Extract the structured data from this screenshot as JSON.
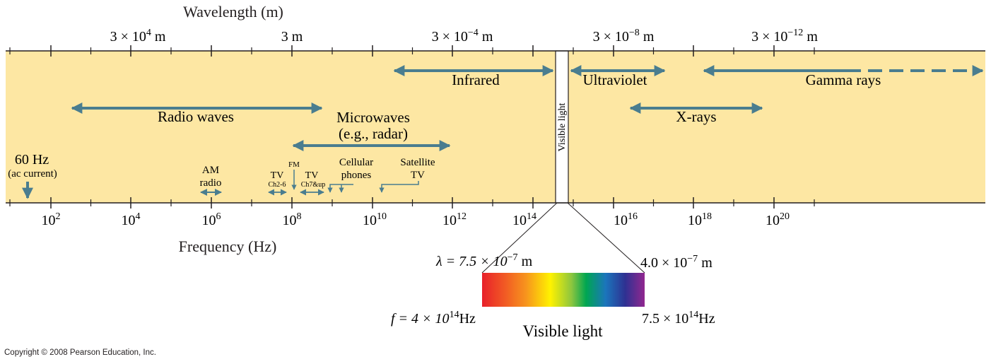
{
  "colors": {
    "band": "#fde7a3",
    "arrow": "#4a7d8f",
    "line": "#231f20",
    "text": "#231f20"
  },
  "wavelength_axis": {
    "title": "Wavelength (m)",
    "labels": [
      {
        "coef": "3 × 10",
        "exp": "4",
        "unit": " m"
      },
      {
        "coef": "3 m",
        "exp": "",
        "unit": ""
      },
      {
        "coef": "3 × 10",
        "exp": "−4",
        "unit": " m"
      },
      {
        "coef": "3 × 10",
        "exp": "−8",
        "unit": " m"
      },
      {
        "coef": "3 × 10",
        "exp": "−12",
        "unit": " m"
      }
    ]
  },
  "frequency_axis": {
    "title": "Frequency (Hz)",
    "labels": [
      {
        "base": "10",
        "exp": "2"
      },
      {
        "base": "10",
        "exp": "4"
      },
      {
        "base": "10",
        "exp": "6"
      },
      {
        "base": "10",
        "exp": "8"
      },
      {
        "base": "10",
        "exp": "10"
      },
      {
        "base": "10",
        "exp": "12"
      },
      {
        "base": "10",
        "exp": "14"
      },
      {
        "base": "10",
        "exp": "16"
      },
      {
        "base": "10",
        "exp": "18"
      },
      {
        "base": "10",
        "exp": "20"
      }
    ]
  },
  "bands": {
    "infrared": "Infrared",
    "ultraviolet": "Ultraviolet",
    "gamma": "Gamma rays",
    "radio": "Radio waves",
    "microwaves_line1": "Microwaves",
    "microwaves_line2": "(e.g., radar)",
    "xrays": "X-rays",
    "visible_vertical": "Visible light"
  },
  "small_labels": {
    "hz60": "60 Hz",
    "ac_current": "(ac current)",
    "am_line1": "AM",
    "am_line2": "radio",
    "tv1": "TV",
    "tv1_ch": "Ch2-6",
    "fm": "FM",
    "tv2": "TV",
    "tv2_ch": "Ch7&up",
    "cellular_line1": "Cellular",
    "cellular_line2": "phones",
    "satellite_line1": "Satellite",
    "satellite_line2": "TV"
  },
  "visible_detail": {
    "lambda_left": {
      "prefix": "λ = 7.5 × 10",
      "exp": "−7",
      "unit": " m"
    },
    "lambda_right": {
      "prefix": "4.0 × 10",
      "exp": "−7",
      "unit": " m"
    },
    "freq_left": {
      "prefix": "f = 4 × 10",
      "exp": "14",
      "unit": "Hz"
    },
    "freq_right": {
      "prefix": "7.5 × 10",
      "exp": "14",
      "unit": "Hz"
    },
    "title": "Visible light",
    "spectrum_colors": [
      "#e8202a",
      "#f15a24",
      "#f7941d",
      "#fff200",
      "#8dc63f",
      "#00a651",
      "#1b75bc",
      "#2e3192",
      "#92278f"
    ]
  },
  "copyright": "Copyright © 2008 Pearson Education, Inc."
}
